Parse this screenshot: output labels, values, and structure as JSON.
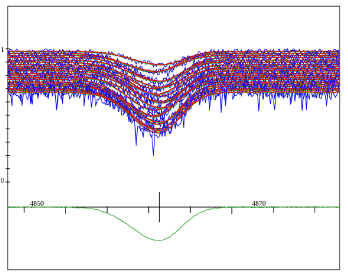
{
  "colors": {
    "observed": "#1010e8",
    "model": "#d01818",
    "fit": "#33cc33",
    "mean_profile": "#3aa83a",
    "axis": "#000000"
  },
  "chart_data": [
    {
      "type": "line",
      "panel": "top",
      "description_labels": [
        "1",
        "0"
      ],
      "y_tick_labels": [
        "1",
        "0"
      ],
      "y_ticks": [
        0,
        0.1,
        0.2,
        0.3,
        0.4,
        0.5,
        0.6,
        0.7,
        0.8,
        0.9,
        1.0
      ],
      "ylim": [
        0,
        1.05
      ],
      "xlim": [
        4843,
        4883
      ],
      "line_center": 4861.3,
      "series": [
        {
          "values": {
            "base": 0.98,
            "depth": 0.1,
            "noise": 0.02
          }
        },
        {
          "values": {
            "base": 0.965,
            "depth": 0.14,
            "noise": 0.022
          }
        },
        {
          "values": {
            "base": 0.95,
            "depth": 0.12,
            "noise": 0.025
          }
        },
        {
          "values": {
            "base": 0.935,
            "depth": 0.18,
            "noise": 0.025
          }
        },
        {
          "values": {
            "base": 0.915,
            "depth": 0.16,
            "noise": 0.028
          }
        },
        {
          "values": {
            "base": 0.9,
            "depth": 0.2,
            "noise": 0.028
          }
        },
        {
          "values": {
            "base": 0.88,
            "depth": 0.17,
            "noise": 0.03
          }
        },
        {
          "values": {
            "base": 0.865,
            "depth": 0.22,
            "noise": 0.03
          }
        },
        {
          "values": {
            "base": 0.85,
            "depth": 0.19,
            "noise": 0.03
          }
        },
        {
          "values": {
            "base": 0.835,
            "depth": 0.24,
            "noise": 0.032
          }
        },
        {
          "values": {
            "base": 0.815,
            "depth": 0.21,
            "noise": 0.032
          }
        },
        {
          "values": {
            "base": 0.8,
            "depth": 0.26,
            "noise": 0.035
          }
        },
        {
          "values": {
            "base": 0.785,
            "depth": 0.23,
            "noise": 0.035
          }
        },
        {
          "values": {
            "base": 0.77,
            "depth": 0.28,
            "noise": 0.035
          }
        },
        {
          "values": {
            "base": 0.75,
            "depth": 0.25,
            "noise": 0.038
          }
        },
        {
          "values": {
            "base": 0.735,
            "depth": 0.3,
            "noise": 0.04
          }
        },
        {
          "values": {
            "base": 0.72,
            "depth": 0.27,
            "noise": 0.04
          }
        },
        {
          "values": {
            "base": 0.7,
            "depth": 0.3,
            "noise": 0.045
          }
        },
        {
          "values": {
            "base": 0.69,
            "depth": 0.32,
            "noise": 0.05
          }
        },
        {
          "values": {
            "base": 0.675,
            "depth": 0.29,
            "noise": 0.06
          }
        }
      ]
    },
    {
      "type": "line",
      "panel": "bottom",
      "x_tick_labels": [
        4850,
        4870
      ],
      "x_ticks": [
        4845,
        4850,
        4855,
        4860,
        4865,
        4870,
        4875,
        4880
      ],
      "xlim": [
        4843,
        4883
      ],
      "line_center": 4861.3,
      "mean_profile": {
        "continuum": 1.0,
        "depth": 0.52
      }
    }
  ]
}
